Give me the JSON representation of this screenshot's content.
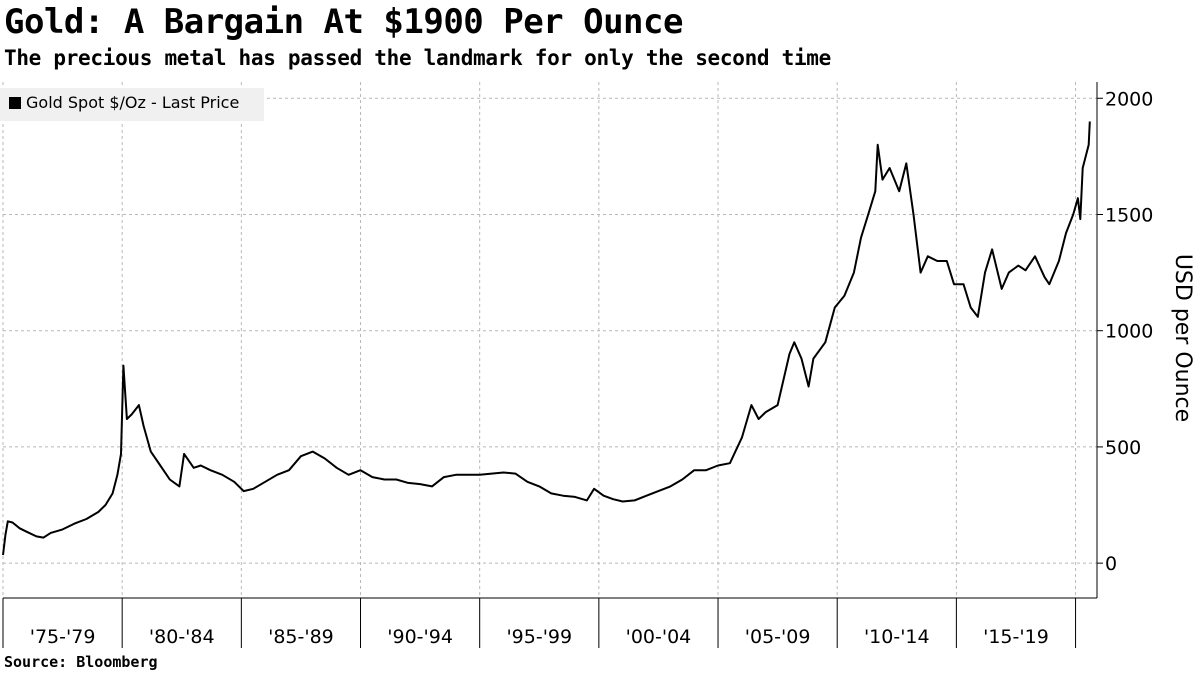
{
  "title": "Gold: A Bargain At $1900 Per Ounce",
  "subtitle": "The precious metal has passed the landmark for only the second time",
  "source": "Source: Bloomberg",
  "chart_data": {
    "type": "line",
    "ylabel": "USD per Ounce",
    "ylim": [
      -150,
      2070
    ],
    "xlim": [
      1975.0,
      2020.9
    ],
    "y_ticks": [
      0,
      500,
      1000,
      1500,
      2000
    ],
    "y_tick_labels": [
      "0",
      "500",
      "1000",
      "1500",
      "2000"
    ],
    "x_categories": [
      "'75-'79",
      "'80-'84",
      "'85-'89",
      "'90-'94",
      "'95-'99",
      "'00-'04",
      "'05-'09",
      "'10-'14",
      "'15-'19"
    ],
    "x_boundaries": [
      1975.0,
      1980.0,
      1985.0,
      1990.0,
      1995.0,
      2000.0,
      2005.0,
      2010.0,
      2015.0,
      2020.0
    ],
    "grid": true,
    "legend_position": "top-left",
    "line_color": "#000000",
    "series": [
      {
        "name": "Gold Spot $/Oz - Last Price",
        "x": [
          1975.0,
          1975.1,
          1975.2,
          1975.4,
          1975.7,
          1976.0,
          1976.4,
          1976.7,
          1977.0,
          1977.5,
          1978.0,
          1978.5,
          1979.0,
          1979.3,
          1979.6,
          1979.8,
          1979.95,
          1980.05,
          1980.2,
          1980.4,
          1980.7,
          1980.9,
          1981.2,
          1981.6,
          1982.0,
          1982.4,
          1982.6,
          1983.0,
          1983.3,
          1983.7,
          1984.2,
          1984.7,
          1985.1,
          1985.5,
          1986.0,
          1986.5,
          1987.0,
          1987.5,
          1988.0,
          1988.5,
          1989.0,
          1989.5,
          1990.0,
          1990.5,
          1991.0,
          1991.5,
          1992.0,
          1992.5,
          1993.0,
          1993.5,
          1994.0,
          1994.5,
          1995.0,
          1995.5,
          1996.0,
          1996.5,
          1997.0,
          1997.5,
          1998.0,
          1998.5,
          1999.0,
          1999.5,
          1999.8,
          2000.2,
          2000.6,
          2001.0,
          2001.5,
          2002.0,
          2002.5,
          2003.0,
          2003.5,
          2004.0,
          2004.5,
          2005.0,
          2005.5,
          2006.0,
          2006.4,
          2006.7,
          2007.0,
          2007.5,
          2008.0,
          2008.2,
          2008.5,
          2008.8,
          2009.0,
          2009.5,
          2009.9,
          2010.3,
          2010.7,
          2011.0,
          2011.3,
          2011.6,
          2011.7,
          2011.9,
          2012.2,
          2012.6,
          2012.9,
          2013.2,
          2013.5,
          2013.8,
          2014.2,
          2014.6,
          2014.9,
          2015.3,
          2015.6,
          2015.9,
          2016.2,
          2016.5,
          2016.9,
          2017.2,
          2017.6,
          2017.9,
          2018.3,
          2018.7,
          2018.9,
          2019.3,
          2019.6,
          2019.9,
          2020.1,
          2020.2,
          2020.3,
          2020.4,
          2020.55,
          2020.6
        ],
        "y": [
          35,
          120,
          180,
          175,
          150,
          135,
          115,
          110,
          130,
          145,
          170,
          190,
          220,
          250,
          300,
          380,
          470,
          850,
          620,
          640,
          680,
          590,
          480,
          420,
          360,
          330,
          470,
          410,
          420,
          400,
          380,
          350,
          310,
          320,
          350,
          380,
          400,
          460,
          480,
          450,
          410,
          380,
          400,
          370,
          360,
          360,
          345,
          340,
          330,
          370,
          380,
          380,
          380,
          385,
          390,
          385,
          350,
          330,
          300,
          290,
          285,
          270,
          320,
          290,
          275,
          265,
          270,
          290,
          310,
          330,
          360,
          400,
          400,
          420,
          430,
          540,
          680,
          620,
          650,
          680,
          900,
          950,
          880,
          760,
          880,
          950,
          1100,
          1150,
          1250,
          1400,
          1500,
          1600,
          1800,
          1650,
          1700,
          1600,
          1720,
          1500,
          1250,
          1320,
          1300,
          1300,
          1200,
          1200,
          1100,
          1060,
          1250,
          1350,
          1180,
          1250,
          1280,
          1260,
          1320,
          1230,
          1200,
          1300,
          1420,
          1500,
          1570,
          1480,
          1700,
          1740,
          1800,
          1900
        ]
      }
    ]
  }
}
